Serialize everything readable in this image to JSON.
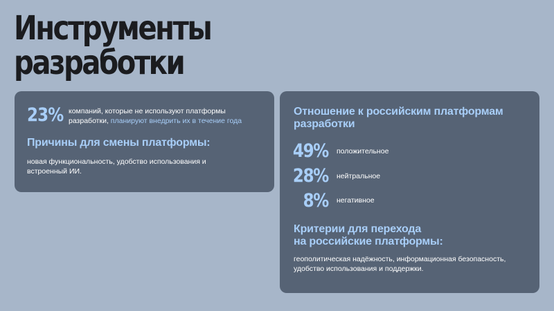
{
  "page": {
    "title_line1": "Инструменты",
    "title_line2": "разработки"
  },
  "left_card": {
    "stat_value": "23%",
    "stat_text": "компаний, которые не используют платформы разработки,",
    "stat_text_highlight": "планируют внедрить их в течение года",
    "reasons_heading": "Причины для смены платформы:",
    "reasons_text": "новая функциональность, удобство использования и встроенный ИИ."
  },
  "right_card": {
    "attitude_heading": "Отношение к российским платформам разработки",
    "stats": [
      {
        "value": "49%",
        "label": "положительное"
      },
      {
        "value": "28%",
        "label": "нейтральное"
      },
      {
        "value": "8%",
        "label": "негативное"
      }
    ],
    "criteria_heading_line1": "Критерии для перехода",
    "criteria_heading_line2": "на российские платформы:",
    "criteria_text": "геополитическая надёжность, информационная безопасность, удобство использования и поддержки."
  },
  "colors": {
    "background": "#a7b6c9",
    "card": "#566375",
    "accent": "#a8cef8",
    "title": "#1b1c1f"
  }
}
